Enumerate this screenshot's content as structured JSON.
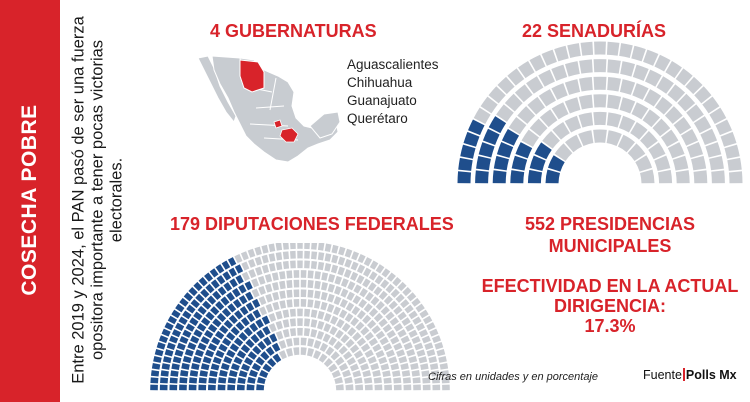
{
  "side": {
    "title": "COSECHA POBRE",
    "description": "Entre 2019 y 2024, el PAN pasó de ser una fuerza opositora importante a tener pocas victorias electorales."
  },
  "gubernaturas": {
    "title": "4 GUBERNATURAS",
    "states": [
      "Aguascalientes",
      "Chihuahua",
      "Guanajuato",
      "Querétaro"
    ]
  },
  "senadurias": {
    "title": "22 SENADURÍAS",
    "won": 22,
    "total": 128
  },
  "diputaciones": {
    "title": "179 DIPUTACIONES FEDERALES",
    "won": 179,
    "total": 500
  },
  "presidencias": {
    "title_line1": "552 PRESIDENCIAS",
    "title_line2": "MUNICIPALES"
  },
  "efectividad": {
    "line1": "EFECTIVIDAD EN LA ACTUAL",
    "line2": "DIRIGENCIA:",
    "value": "17.3%"
  },
  "footer": {
    "note": "Cifras en unidades y en porcentaje",
    "source_label": "Fuente",
    "source_brand": "Polls Mx"
  },
  "colors": {
    "accent": "#d8232a",
    "won": "#1f4e8c",
    "rest": "#c9ccd1",
    "map_land": "#c8ccd1",
    "map_highlight": "#d8232a"
  }
}
